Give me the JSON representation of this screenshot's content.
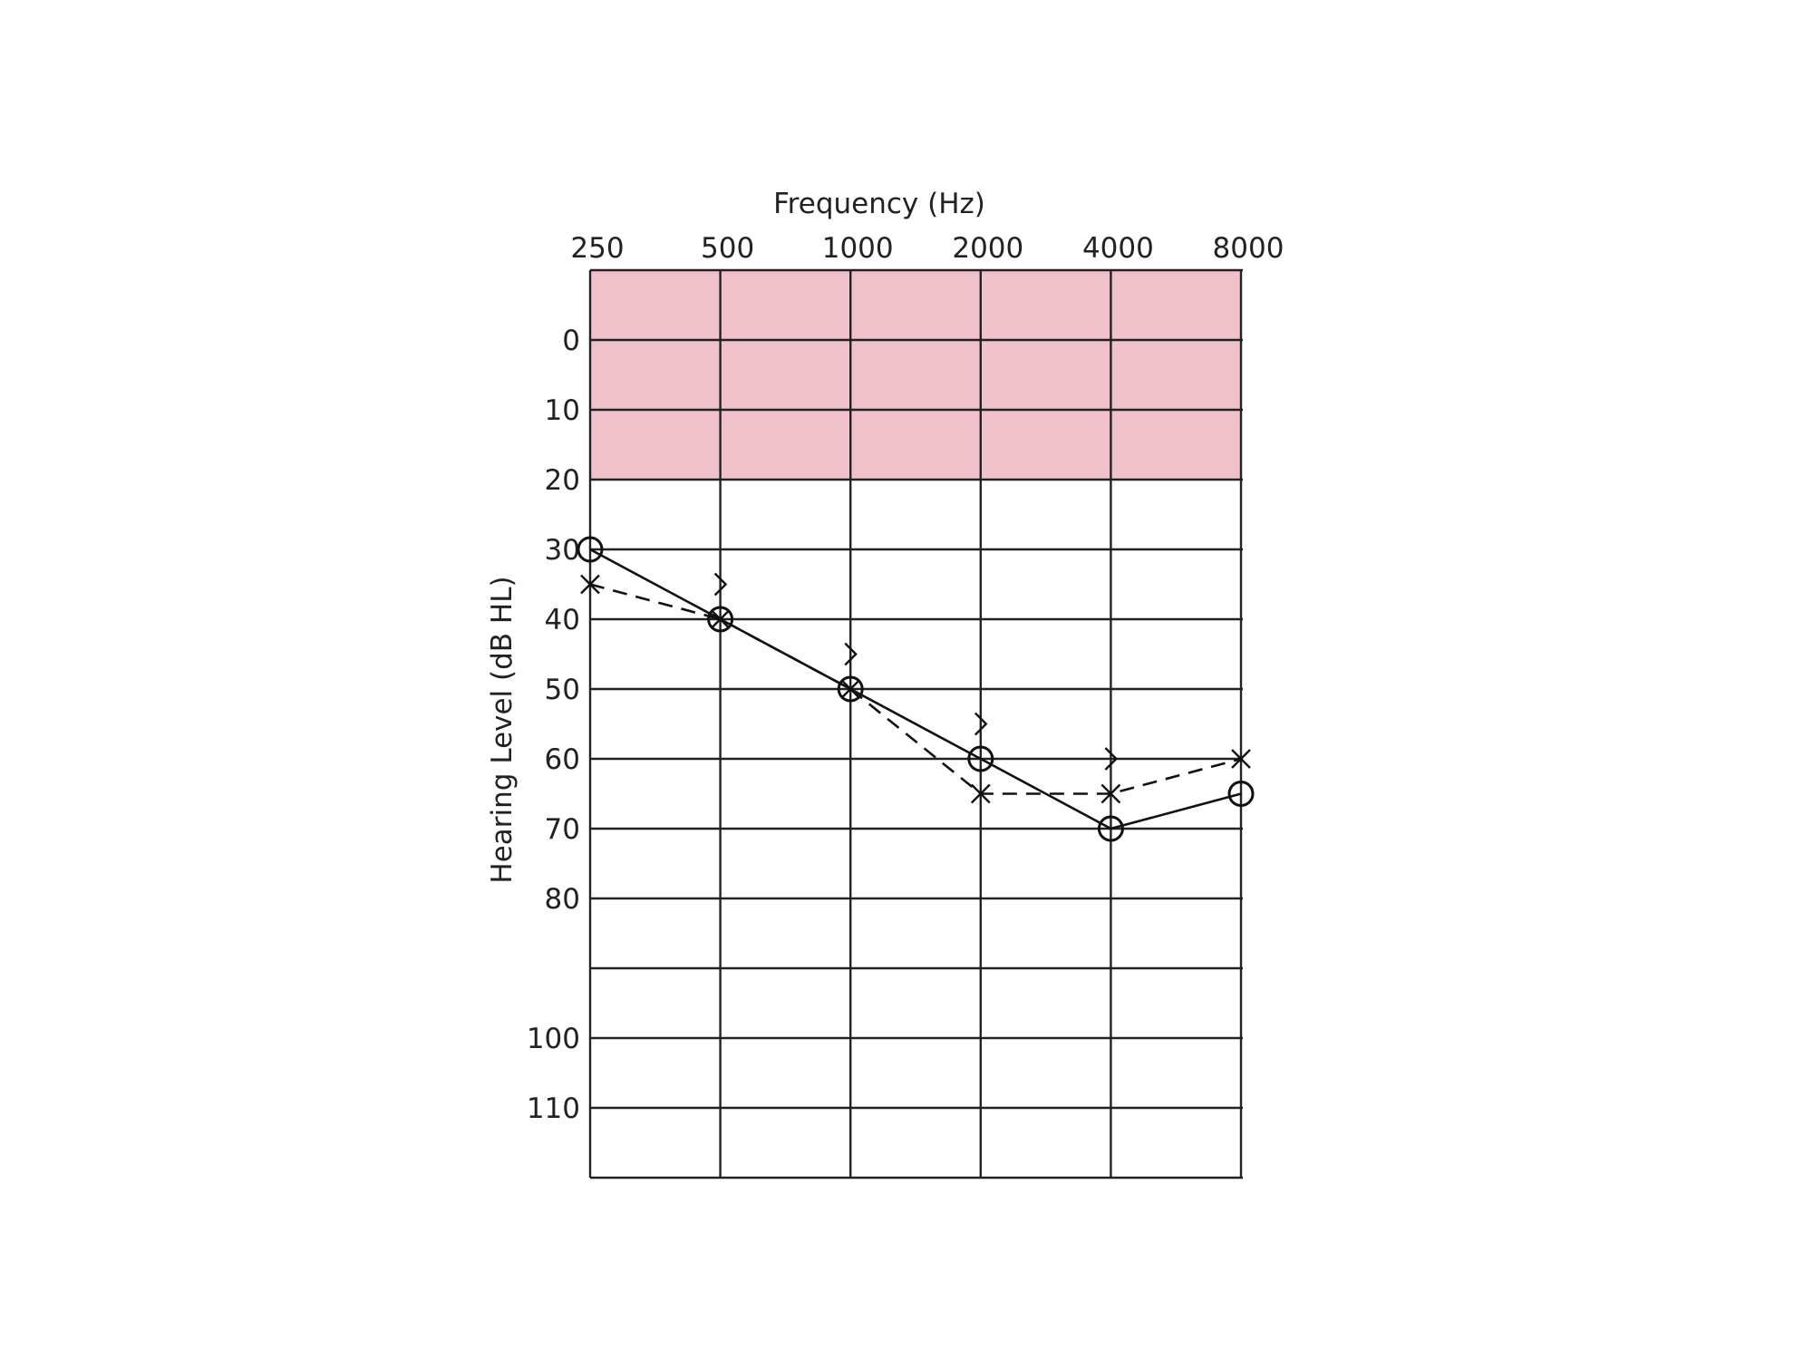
{
  "chart_data": {
    "type": "line",
    "title": "",
    "xlabel": "Frequency (Hz)",
    "ylabel": "Hearing Level (dB HL)",
    "x_categories": [
      "250",
      "500",
      "1000",
      "2000",
      "4000",
      "8000"
    ],
    "y_tick_labels": [
      {
        "value": 0,
        "label": "0"
      },
      {
        "value": 10,
        "label": "10"
      },
      {
        "value": 20,
        "label": "20"
      },
      {
        "value": 30,
        "label": "30"
      },
      {
        "value": 40,
        "label": "40"
      },
      {
        "value": 50,
        "label": "50"
      },
      {
        "value": 60,
        "label": "60"
      },
      {
        "value": 70,
        "label": "70"
      },
      {
        "value": 80,
        "label": "80"
      },
      {
        "value": 100,
        "label": "100"
      },
      {
        "value": 110,
        "label": "110"
      }
    ],
    "ylim": [
      -10,
      120
    ],
    "y_inverted": true,
    "grid": true,
    "shaded_band": {
      "from": -10,
      "to": 20,
      "color": "#f0c0cb"
    },
    "series": [
      {
        "marker": "circle",
        "line": "solid",
        "values": [
          30,
          40,
          50,
          60,
          70,
          65
        ]
      },
      {
        "marker": "x",
        "line": "dashed",
        "values": [
          35,
          40,
          50,
          65,
          65,
          60
        ]
      },
      {
        "marker": "greater-than",
        "line": "none",
        "values": [
          null,
          35,
          45,
          55,
          60,
          null
        ]
      }
    ]
  }
}
